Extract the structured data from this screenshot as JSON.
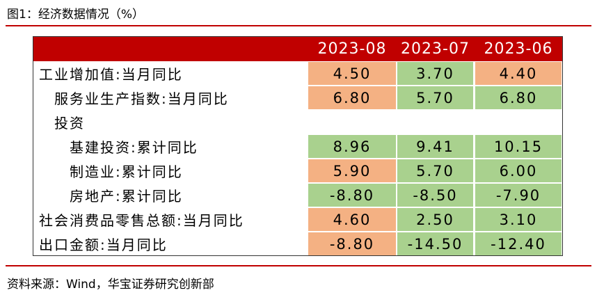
{
  "title": "图1：经济数据情况（%）",
  "table": {
    "header": [
      "2023-08",
      "2023-07",
      "2023-06"
    ],
    "header_color": "#c00000",
    "rows": [
      {
        "label": "工业增加值:当月同比",
        "values": [
          "4.50",
          "3.70",
          "4.40"
        ],
        "colors": [
          "#f4b183",
          "#a9d18e",
          "#f4b183"
        ]
      },
      {
        "label": "服务业生产指数:当月同比",
        "values": [
          "6.80",
          "5.70",
          "6.80"
        ],
        "colors": [
          "#f4b183",
          "#a9d18e",
          "#a9d18e"
        ]
      },
      {
        "label": "投资",
        "values": [],
        "colors": []
      },
      {
        "label": "基建投资:累计同比",
        "values": [
          "8.96",
          "9.41",
          "10.15"
        ],
        "colors": [
          "#a9d18e",
          "#a9d18e",
          "#a9d18e"
        ]
      },
      {
        "label": "制造业:累计同比",
        "values": [
          "5.90",
          "5.70",
          "6.00"
        ],
        "colors": [
          "#f4b183",
          "#a9d18e",
          "#a9d18e"
        ]
      },
      {
        "label": "房地产:累计同比",
        "values": [
          "-8.80",
          "-8.50",
          "-7.90"
        ],
        "colors": [
          "#a9d18e",
          "#a9d18e",
          "#a9d18e"
        ]
      },
      {
        "label": "社会消费品零售总额:当月同比",
        "values": [
          "4.60",
          "2.50",
          "3.10"
        ],
        "colors": [
          "#f4b183",
          "#a9d18e",
          "#a9d18e"
        ]
      },
      {
        "label": "出口金额:当月同比",
        "values": [
          "-8.80",
          "-14.50",
          "-12.40"
        ],
        "colors": [
          "#f4b183",
          "#a9d18e",
          "#a9d18e"
        ]
      }
    ]
  },
  "source": "资料来源：Wind，华宝证券研究创新部"
}
